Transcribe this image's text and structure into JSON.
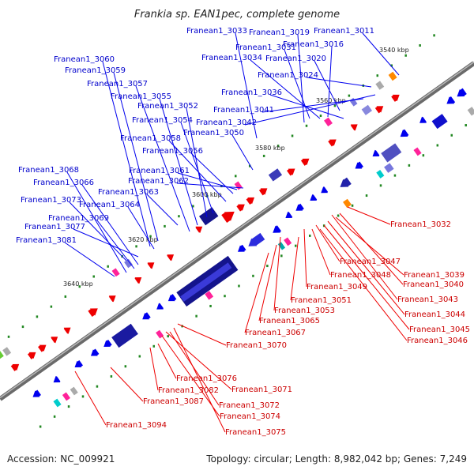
{
  "title": "Frankia sp. EAN1pec, complete genome",
  "accession": "Accession: NC_009921",
  "summary": "Topology: circular; Length: 8,982,042 bp; Genes: 7,249",
  "colors": {
    "forward": "#0000ee",
    "reverse": "#ee0000",
    "backbone": "#888888"
  },
  "scale_labels": [
    "3540 kbp",
    "3560 kbp",
    "3580 kbp",
    "3600 kbp",
    "3620 kbp",
    "3640 kbp"
  ],
  "forward_genes": [
    "Franean1_3033",
    "Franean1_3019",
    "Franean1_3011",
    "Franean1_3031",
    "Franean1_3016",
    "Franean1_3034",
    "Franean1_3020",
    "Franean1_3060",
    "Franean1_3059",
    "Franean1_3024",
    "Franean1_3057",
    "Franean1_3036",
    "Franean1_3055",
    "Franean1_3052",
    "Franean1_3041",
    "Franean1_3054",
    "Franean1_3042",
    "Franean1_3050",
    "Franean1_3058",
    "Franean1_3056",
    "Franean1_3068",
    "Franean1_3061",
    "Franean1_3066",
    "Franean1_3062",
    "Franean1_3063",
    "Franean1_3073",
    "Franean1_3064",
    "Franean1_3069",
    "Franean1_3077",
    "Franean1_3081"
  ],
  "reverse_genes": [
    "Franean1_3032",
    "Franean1_3047",
    "Franean1_3039",
    "Franean1_3048",
    "Franean1_3040",
    "Franean1_3049",
    "Franean1_3043",
    "Franean1_3051",
    "Franean1_3053",
    "Franean1_3044",
    "Franean1_3065",
    "Franean1_3045",
    "Franean1_3067",
    "Franean1_3046",
    "Franean1_3070",
    "Franean1_3076",
    "Franean1_3071",
    "Franean1_3082",
    "Franean1_3087",
    "Franean1_3072",
    "Franean1_3074",
    "Franean1_3094",
    "Franean1_3075"
  ]
}
